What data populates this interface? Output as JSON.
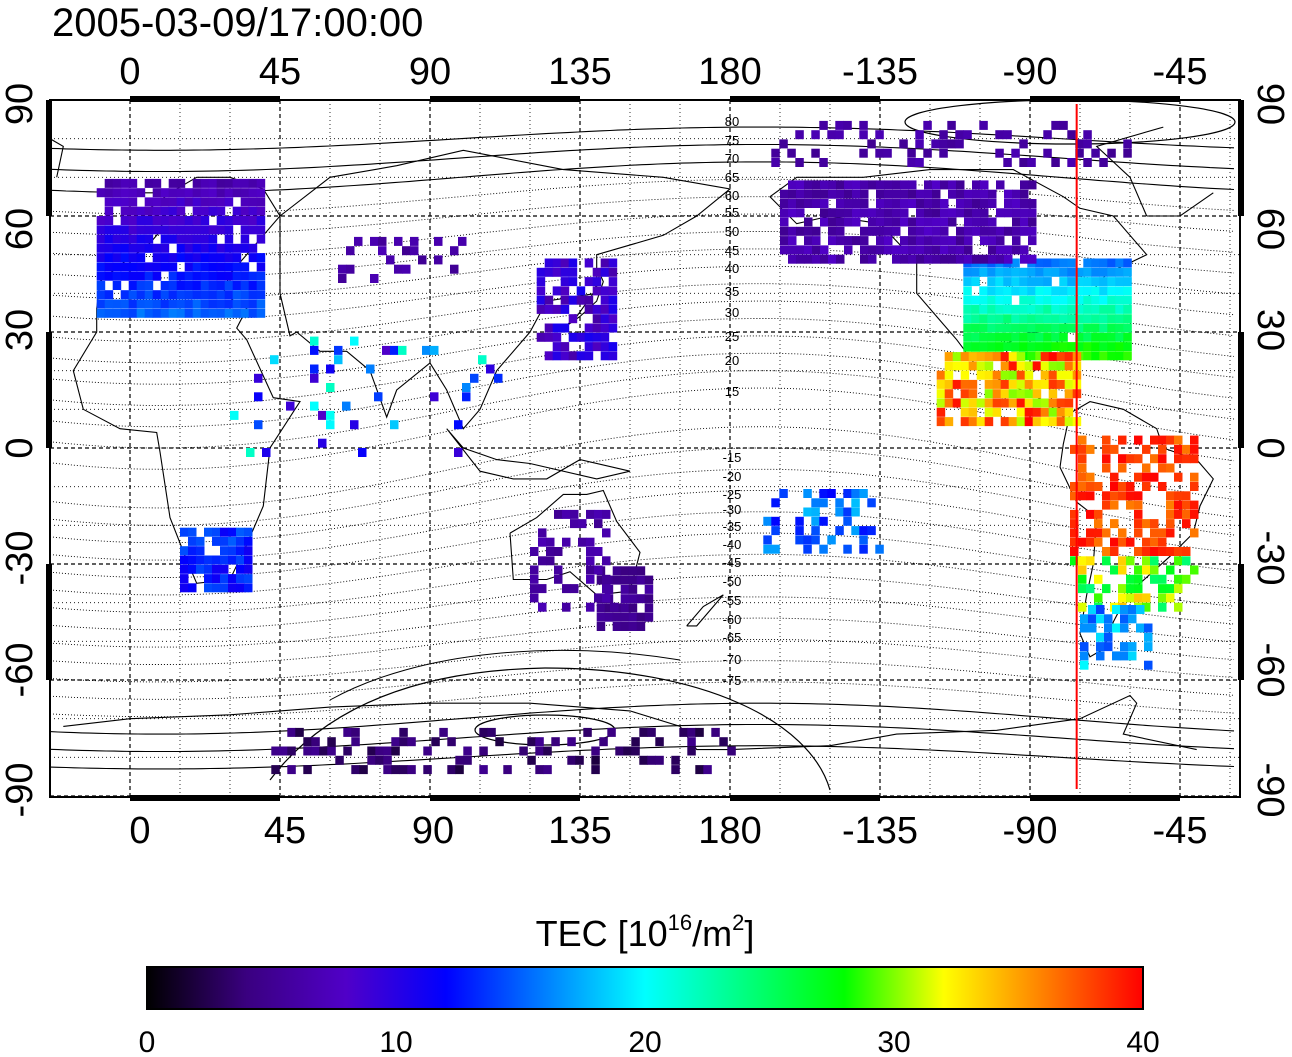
{
  "timestamp": "2005-03-09/17:00:00",
  "colorbar": {
    "title_prefix": "TEC  [10",
    "title_sup1": "16",
    "title_mid": "/m",
    "title_sup2": "2",
    "title_suffix": "]",
    "ticks": [
      "0",
      "10",
      "20",
      "30",
      "40"
    ],
    "range": [
      0,
      40
    ],
    "colormap": [
      "#000000",
      "#3a0080",
      "#5000c8",
      "#0000ff",
      "#0080ff",
      "#00ffff",
      "#00ff80",
      "#00ff00",
      "#ffff00",
      "#ff8000",
      "#ff0000"
    ]
  },
  "map": {
    "x_ticks": [
      "0",
      "45",
      "90",
      "135",
      "180",
      "-135",
      "-90",
      "-45"
    ],
    "y_ticks": [
      "90",
      "60",
      "30",
      "0",
      "-30",
      "-60",
      "-90"
    ],
    "contour_labels": [
      "80",
      "75",
      "70",
      "65",
      "60",
      "55",
      "50",
      "45",
      "40",
      "35",
      "30",
      "25",
      "20",
      "15",
      "-15",
      "-20",
      "-25",
      "-30",
      "-35",
      "-40",
      "-45",
      "-50",
      "-55",
      "-60",
      "-65",
      "-70",
      "-75"
    ],
    "terminator_longitude": -76,
    "terminator_color": "#ff0000"
  }
}
